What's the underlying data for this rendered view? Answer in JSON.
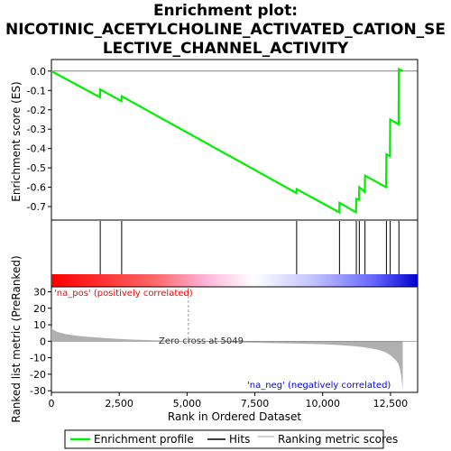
{
  "title_lines": [
    "Enrichment plot:",
    "NICOTINIC_ACETYLCHOLINE_ACTIVATED_CATION_SE",
    "LECTIVE_CHANNEL_ACTIVITY"
  ],
  "colors": {
    "enrichment_line": "#00ee00",
    "hits": "#000000",
    "ranking_fill": "#b0b0b0",
    "zero_line": "#808080",
    "pos_label": "#ff0000",
    "neg_label": "#0000ff",
    "bar_gradient": [
      "#ff0000",
      "#ff6666",
      "#ffb3d9",
      "#ffffff",
      "#c0c0ff",
      "#6666ff",
      "#0000cc"
    ]
  },
  "chart_data": [
    {
      "type": "line",
      "title": "Enrichment plot: NICOTINIC_ACETYLCHOLINE_ACTIVATED_CATION_SELECTIVE_CHANNEL_ACTIVITY",
      "ylabel": "Enrichment score (ES)",
      "xlim": [
        0,
        13500
      ],
      "ylim": [
        -0.77,
        0.06
      ],
      "yticks": [
        0.0,
        -0.1,
        -0.2,
        -0.3,
        -0.4,
        -0.5,
        -0.6,
        -0.7
      ],
      "ytick_labels": [
        "0.0",
        "-0.1",
        "-0.2",
        "-0.3",
        "-0.4",
        "-0.5",
        "-0.6",
        "-0.7"
      ],
      "series": [
        {
          "name": "Enrichment profile",
          "x": [
            0,
            1790,
            1800,
            2580,
            2590,
            9030,
            9040,
            10610,
            10620,
            11230,
            11240,
            11340,
            11350,
            11550,
            11560,
            12340,
            12350,
            12480,
            12490,
            12800,
            12810,
            12950
          ],
          "y": [
            0.0,
            -0.135,
            -0.095,
            -0.155,
            -0.13,
            -0.63,
            -0.61,
            -0.73,
            -0.68,
            -0.73,
            -0.66,
            -0.665,
            -0.6,
            -0.625,
            -0.54,
            -0.6,
            -0.43,
            -0.44,
            -0.25,
            -0.275,
            0.01,
            0.0
          ]
        }
      ]
    },
    {
      "type": "hits",
      "hit_positions": [
        1800,
        2590,
        9040,
        10620,
        11240,
        11350,
        11560,
        12350,
        12490,
        12810
      ]
    },
    {
      "type": "area",
      "xlabel": "Rank in Ordered Dataset",
      "ylabel": "Ranked list metric (PreRanked)",
      "xlim": [
        0,
        13500
      ],
      "ylim": [
        -31,
        33
      ],
      "xticks": [
        0,
        2500,
        5000,
        7500,
        10000,
        12500
      ],
      "xtick_labels": [
        "0",
        "2,500",
        "5,000",
        "7,500",
        "10,000",
        "12,500"
      ],
      "yticks": [
        30,
        20,
        10,
        0,
        -10,
        -20,
        -30
      ],
      "ytick_labels": [
        "30",
        "20",
        "10",
        "0",
        "-10",
        "-20",
        "-30"
      ],
      "series": [
        {
          "name": "Ranking metric scores",
          "x": [
            0,
            50,
            200,
            500,
            1000,
            1500,
            2000,
            2500,
            3000,
            4000,
            5049,
            6000,
            7000,
            8000,
            9000,
            10000,
            10500,
            11000,
            11500,
            12000,
            12300,
            12500,
            12700,
            12800,
            12850,
            12900,
            12950
          ],
          "y": [
            8.5,
            7.2,
            5.8,
            4.4,
            3.2,
            2.5,
            1.9,
            1.4,
            1.0,
            0.5,
            0.0,
            -0.4,
            -0.8,
            -1.1,
            -1.4,
            -1.8,
            -2.2,
            -2.8,
            -3.6,
            -5.0,
            -6.5,
            -8.5,
            -11.5,
            -14.0,
            -17.0,
            -22.0,
            -29.0
          ]
        }
      ],
      "annotations": [
        {
          "text": "'na_pos' (positively correlated)"
        },
        {
          "text": "Zero cross at 5049",
          "x": 5049
        },
        {
          "text": "'na_neg' (negatively correlated)"
        }
      ]
    }
  ],
  "legend": {
    "items": [
      {
        "label": "Enrichment profile",
        "color": "#00ee00"
      },
      {
        "label": "Hits",
        "color": "#000000"
      },
      {
        "label": "Ranking metric scores",
        "color": "#b0b0b0"
      }
    ]
  }
}
